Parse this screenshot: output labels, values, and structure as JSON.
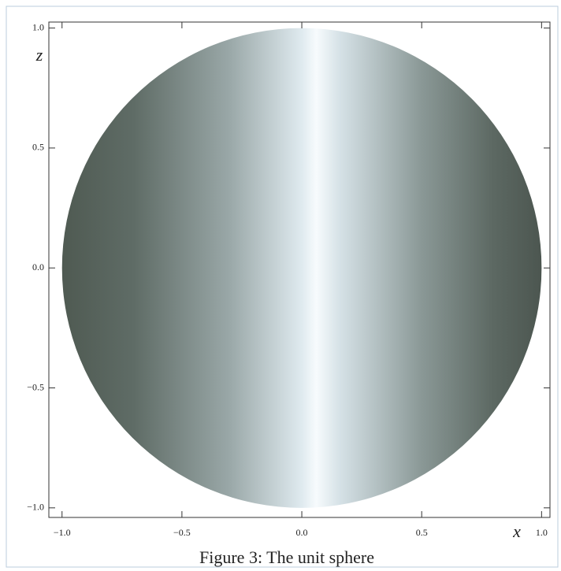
{
  "chart_data": {
    "type": "disk",
    "caption": "Figure 3: The unit sphere",
    "xlabel": "x",
    "ylabel": "z",
    "disk": {
      "center": [
        0,
        0
      ],
      "radius": 1
    },
    "xlim": [
      -1.055,
      1.035
    ],
    "ylim": [
      -1.04,
      1.025
    ],
    "xticks": [
      {
        "value": -1,
        "label": "−1.0"
      },
      {
        "value": -0.5,
        "label": "−0.5"
      },
      {
        "value": 0,
        "label": "0.0"
      },
      {
        "value": 0.5,
        "label": "0.5"
      },
      {
        "value": 1,
        "label": "1.0"
      }
    ],
    "yticks": [
      {
        "value": -1,
        "label": "−1.0"
      },
      {
        "value": -0.5,
        "label": "−0.5"
      },
      {
        "value": 0,
        "label": "0.0"
      },
      {
        "value": 0.5,
        "label": "0.5"
      },
      {
        "value": 1,
        "label": "1.0"
      }
    ]
  }
}
